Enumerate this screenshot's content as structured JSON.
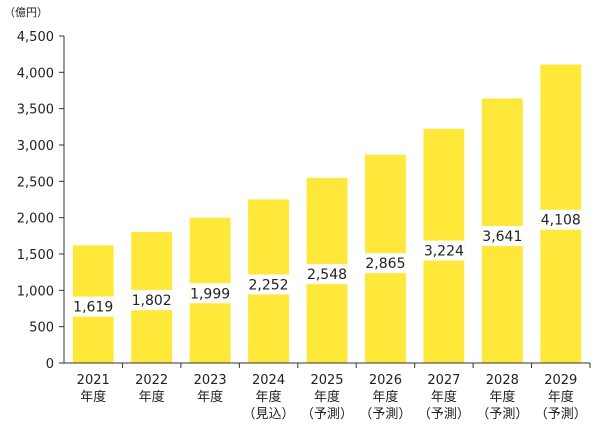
{
  "chart_data": {
    "type": "bar",
    "unit_label": "（億円）",
    "categories": [
      [
        "2021",
        "年度",
        ""
      ],
      [
        "2022",
        "年度",
        ""
      ],
      [
        "2023",
        "年度",
        ""
      ],
      [
        "2024",
        "年度",
        "（見込）"
      ],
      [
        "2025",
        "年度",
        "（予測）"
      ],
      [
        "2026",
        "年度",
        "（予測）"
      ],
      [
        "2027",
        "年度",
        "（予測）"
      ],
      [
        "2028",
        "年度",
        "（予測）"
      ],
      [
        "2029",
        "年度",
        "（予測）"
      ]
    ],
    "values": [
      1619,
      1802,
      1999,
      2252,
      2548,
      2865,
      3224,
      3641,
      4108
    ],
    "value_labels": [
      "1,619",
      "1,802",
      "1,999",
      "2,252",
      "2,548",
      "2,865",
      "3,224",
      "3,641",
      "4,108"
    ],
    "ylim": [
      0,
      4500
    ],
    "yticks": [
      0,
      500,
      1000,
      1500,
      2000,
      2500,
      3000,
      3500,
      4000,
      4500
    ],
    "ytick_labels": [
      "0",
      "500",
      "1,000",
      "1,500",
      "2,000",
      "2,500",
      "3,000",
      "3,500",
      "4,000",
      "4,500"
    ],
    "grid": false,
    "colors": {
      "bar": "#FFE83A",
      "axis": "#333333",
      "text": "#222222"
    }
  }
}
